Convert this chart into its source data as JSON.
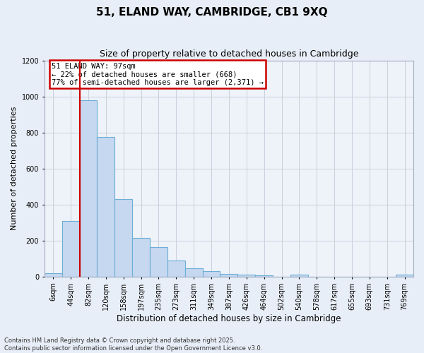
{
  "title": "51, ELAND WAY, CAMBRIDGE, CB1 9XQ",
  "subtitle": "Size of property relative to detached houses in Cambridge",
  "xlabel": "Distribution of detached houses by size in Cambridge",
  "ylabel": "Number of detached properties",
  "categories": [
    "6sqm",
    "44sqm",
    "82sqm",
    "120sqm",
    "158sqm",
    "197sqm",
    "235sqm",
    "273sqm",
    "311sqm",
    "349sqm",
    "387sqm",
    "426sqm",
    "464sqm",
    "502sqm",
    "540sqm",
    "578sqm",
    "617sqm",
    "655sqm",
    "693sqm",
    "731sqm",
    "769sqm"
  ],
  "values": [
    20,
    310,
    980,
    775,
    430,
    215,
    165,
    90,
    48,
    30,
    15,
    10,
    7,
    0,
    10,
    0,
    0,
    0,
    0,
    0,
    10
  ],
  "bar_color": "#c5d8f0",
  "bar_edge_color": "#6baed6",
  "vline_x_index": 1.5,
  "vline_color": "#cc0000",
  "annotation_text": "51 ELAND WAY: 97sqm\n← 22% of detached houses are smaller (668)\n77% of semi-detached houses are larger (2,371) →",
  "annotation_box_color": "white",
  "annotation_box_edge_color": "#cc0000",
  "ylim": [
    0,
    1200
  ],
  "yticks": [
    0,
    200,
    400,
    600,
    800,
    1000,
    1200
  ],
  "footnote1": "Contains HM Land Registry data © Crown copyright and database right 2025.",
  "footnote2": "Contains public sector information licensed under the Open Government Licence v3.0.",
  "bg_color": "#e8eef7",
  "plot_bg_color": "#eef2f9",
  "grid_color": "#c8d0de",
  "title_fontsize": 11,
  "subtitle_fontsize": 9,
  "ylabel_fontsize": 8,
  "xlabel_fontsize": 8.5,
  "tick_fontsize": 7,
  "annotation_fontsize": 7.5,
  "footnote_fontsize": 6
}
